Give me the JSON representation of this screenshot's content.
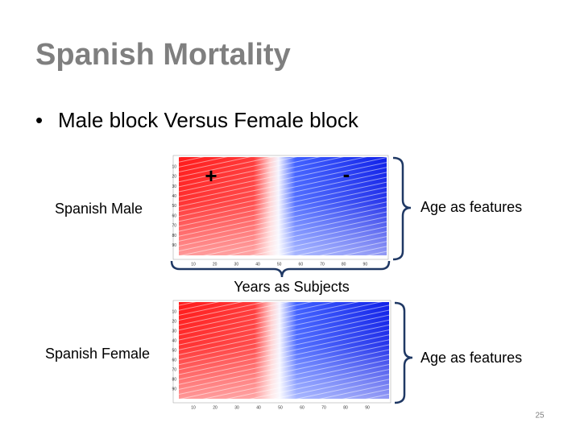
{
  "slide": {
    "title": "Spanish Mortality",
    "bullet": "Male block Versus Female block",
    "page_number": "25"
  },
  "panels": [
    {
      "label": "Spanish Male",
      "right_label": "Age as features",
      "bottom_label": "Years as Subjects",
      "plus": "+",
      "minus": "-",
      "y_ticks": [
        10,
        20,
        30,
        40,
        50,
        60,
        70,
        80,
        90
      ],
      "x_ticks": [
        10,
        20,
        30,
        40,
        50,
        60,
        70,
        80,
        90
      ]
    },
    {
      "label": "Spanish Female",
      "right_label": "Age as features",
      "y_ticks": [
        10,
        20,
        30,
        40,
        50,
        60,
        70,
        80,
        90
      ],
      "x_ticks": [
        10,
        20,
        30,
        40,
        50,
        60,
        70,
        80,
        90
      ]
    }
  ]
}
